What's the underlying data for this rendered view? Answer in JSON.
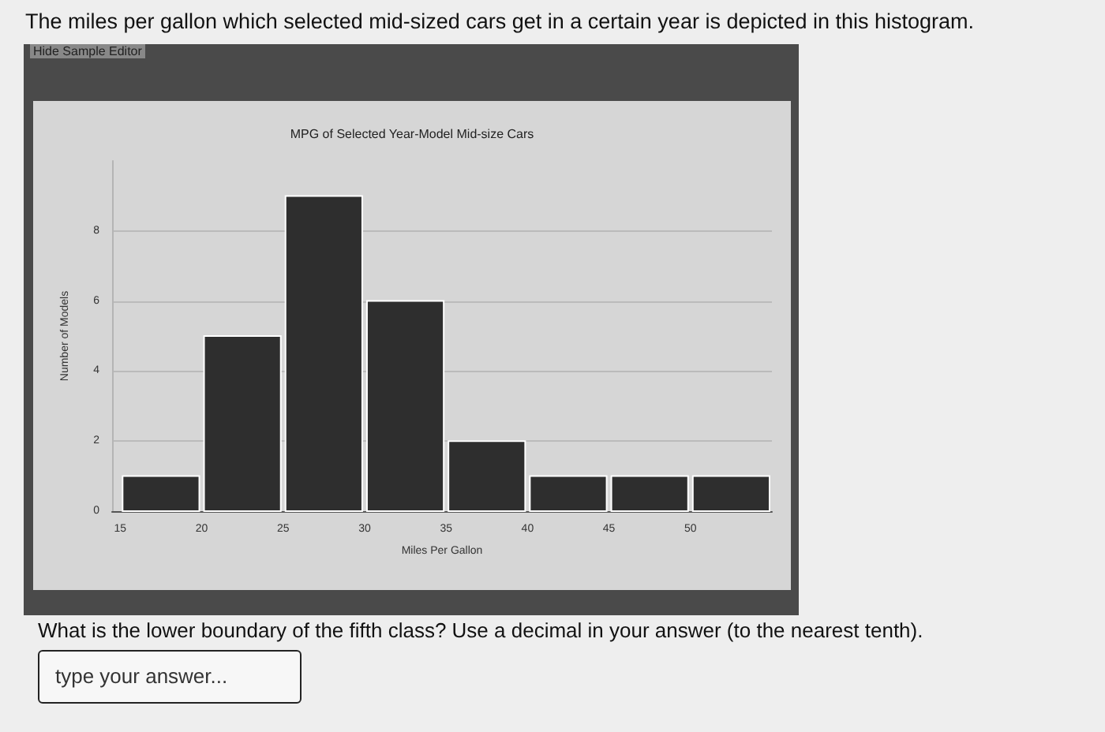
{
  "chart_data": {
    "type": "histogram",
    "title": "MPG of Selected Year-Model Mid-size Cars",
    "xlabel": "Miles Per Gallon",
    "ylabel": "Number of Models",
    "bins": [
      15,
      20,
      25,
      30,
      35,
      40,
      45,
      50,
      55
    ],
    "values": [
      1,
      5,
      9,
      6,
      2,
      1,
      1,
      1
    ],
    "color": "#2e2e2e",
    "xlim": [
      14.5,
      55
    ],
    "xticks": [
      15,
      20,
      25,
      30,
      35,
      40,
      45,
      50
    ],
    "ylim": [
      0,
      10
    ],
    "yticks": [
      0,
      2,
      4,
      6,
      8
    ],
    "grid": "y",
    "annotations": [
      "The miles per gallon which selected mid-sized cars get in a certain year is depicted in this histogram.",
      "Hide Sample Editor",
      "What is the lower boundary of the fifth class? Use a decimal in your answer (to the nearest tenth).",
      "type your answer..."
    ]
  }
}
